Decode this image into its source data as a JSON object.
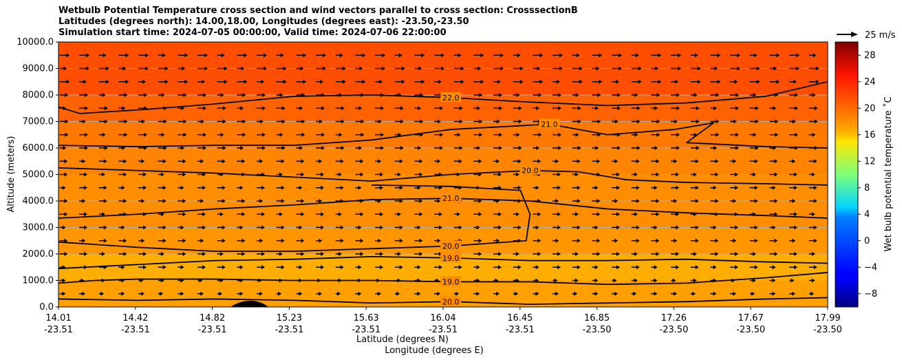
{
  "title_lines": [
    "Wetbulb Potential Temperature cross section and wind vectors parallel to cross section: CrosssectionB",
    "Latitudes (degrees north): 14.00,18.00, Longitudes (degrees east): -23.50,-23.50",
    "Simulation start time: 2024-07-05 00:00:00, Valid time: 2024-07-06 22:00:00"
  ],
  "chart_data": {
    "type": "heatmap",
    "xlabel_lat": "Latitude (degrees N)",
    "xlabel_lon": "Longitude (degrees E)",
    "ylabel": "Altitude (meters)",
    "ylim": [
      0,
      10000
    ],
    "y_ticks": [
      0,
      1000,
      2000,
      3000,
      4000,
      5000,
      6000,
      7000,
      8000,
      9000,
      10000
    ],
    "y_tick_labels": [
      "0.0",
      "1000.0",
      "2000.0",
      "3000.0",
      "4000.0",
      "5000.0",
      "6000.0",
      "7000.0",
      "8000.0",
      "9000.0",
      "10000.0"
    ],
    "x_ticks_lat": [
      "14.01",
      "14.42",
      "14.82",
      "15.23",
      "15.63",
      "16.04",
      "16.45",
      "16.85",
      "17.26",
      "17.67",
      "17.99"
    ],
    "x_ticks_lon": [
      "-23.51",
      "-23.51",
      "-23.51",
      "-23.51",
      "-23.51",
      "-23.51",
      "-23.51",
      "-23.50",
      "-23.50",
      "-23.50",
      "-23.50"
    ],
    "grid": "horizontal",
    "colorbar": {
      "label": "Wet bulb potential temperature ˚C",
      "range": [
        -10,
        30
      ],
      "ticks": [
        -8,
        -4,
        0,
        4,
        8,
        12,
        16,
        20,
        24,
        28
      ],
      "tick_labels": [
        "−8",
        "−4",
        "0",
        "4",
        "8",
        "12",
        "16",
        "20",
        "24",
        "28"
      ],
      "colormap": "jet"
    },
    "quiver_key": {
      "label": "25 m/s",
      "placement": "top-right"
    },
    "bands": [
      {
        "alt_bottom": 0,
        "alt_top": 1000,
        "temp": 19.5
      },
      {
        "alt_bottom": 1000,
        "alt_top": 2000,
        "temp": 18.5
      },
      {
        "alt_bottom": 2000,
        "alt_top": 3000,
        "temp": 20.0
      },
      {
        "alt_bottom": 3000,
        "alt_top": 5000,
        "temp": 20.5
      },
      {
        "alt_bottom": 5000,
        "alt_top": 6000,
        "temp": 21.0
      },
      {
        "alt_bottom": 6000,
        "alt_top": 7000,
        "temp": 21.5
      },
      {
        "alt_bottom": 7000,
        "alt_top": 8000,
        "temp": 22.5
      },
      {
        "alt_bottom": 8000,
        "alt_top": 10000,
        "temp": 23.5
      }
    ],
    "contours": [
      {
        "label": "22.0",
        "points": [
          [
            14.01,
            7550
          ],
          [
            14.12,
            7300
          ],
          [
            14.45,
            7450
          ],
          [
            14.8,
            7650
          ],
          [
            15.23,
            7950
          ],
          [
            15.63,
            8000
          ],
          [
            16.04,
            7900
          ],
          [
            16.4,
            7750
          ],
          [
            16.85,
            7600
          ],
          [
            17.26,
            7700
          ],
          [
            17.67,
            7950
          ],
          [
            17.99,
            8500
          ]
        ]
      },
      {
        "label": "21.0",
        "points": [
          [
            14.01,
            6100
          ],
          [
            14.42,
            6050
          ],
          [
            14.82,
            6100
          ],
          [
            15.23,
            6100
          ],
          [
            15.63,
            6300
          ],
          [
            16.04,
            6700
          ],
          [
            16.3,
            6800
          ],
          [
            16.55,
            6900
          ],
          [
            16.85,
            6500
          ],
          [
            17.2,
            6700
          ],
          [
            17.4,
            6950
          ],
          [
            17.26,
            6200
          ],
          [
            17.67,
            6050
          ],
          [
            17.99,
            6000
          ]
        ]
      },
      {
        "label": "20.0",
        "points": [
          [
            14.01,
            5250
          ],
          [
            14.42,
            5150
          ],
          [
            14.82,
            5050
          ],
          [
            15.23,
            4900
          ],
          [
            15.63,
            4750
          ],
          [
            16.04,
            5000
          ],
          [
            16.45,
            5150
          ],
          [
            16.7,
            5100
          ],
          [
            16.95,
            4800
          ],
          [
            17.26,
            4700
          ],
          [
            17.67,
            4650
          ],
          [
            17.99,
            4600
          ]
        ]
      },
      {
        "label": "20.0",
        "points": [
          [
            15.63,
            4600
          ],
          [
            16.04,
            4550
          ],
          [
            16.4,
            4400
          ],
          [
            16.45,
            3500
          ],
          [
            16.43,
            2500
          ],
          [
            16.04,
            2300
          ],
          [
            15.63,
            2200
          ],
          [
            15.23,
            2100
          ],
          [
            14.82,
            2100
          ],
          [
            14.42,
            2250
          ],
          [
            14.01,
            2450
          ]
        ]
      },
      {
        "label": "21.0",
        "points": [
          [
            14.01,
            3350
          ],
          [
            14.42,
            3500
          ],
          [
            14.82,
            3700
          ],
          [
            15.23,
            3850
          ],
          [
            15.63,
            4050
          ],
          [
            16.04,
            4100
          ],
          [
            16.45,
            4000
          ],
          [
            16.85,
            3700
          ],
          [
            17.26,
            3550
          ],
          [
            17.67,
            3450
          ],
          [
            17.99,
            3350
          ]
        ]
      },
      {
        "label": "19.0",
        "points": [
          [
            14.01,
            1450
          ],
          [
            14.42,
            1600
          ],
          [
            14.82,
            1750
          ],
          [
            15.23,
            1800
          ],
          [
            15.63,
            1900
          ],
          [
            16.04,
            1850
          ],
          [
            16.45,
            1750
          ],
          [
            16.85,
            1750
          ],
          [
            17.26,
            1800
          ],
          [
            17.67,
            1700
          ],
          [
            17.99,
            1650
          ]
        ]
      },
      {
        "label": "19.0",
        "points": [
          [
            14.01,
            900
          ],
          [
            14.2,
            1000
          ],
          [
            14.42,
            1050
          ],
          [
            14.82,
            1050
          ],
          [
            15.23,
            1000
          ],
          [
            15.63,
            1000
          ],
          [
            16.04,
            950
          ],
          [
            16.45,
            950
          ],
          [
            16.85,
            850
          ],
          [
            17.26,
            900
          ],
          [
            17.67,
            1100
          ],
          [
            17.99,
            1300
          ]
        ]
      },
      {
        "label": "20.0",
        "points": [
          [
            14.01,
            300
          ],
          [
            14.42,
            250
          ],
          [
            14.82,
            300
          ],
          [
            15.23,
            250
          ],
          [
            15.63,
            150
          ],
          [
            16.04,
            200
          ],
          [
            16.45,
            100
          ],
          [
            16.85,
            150
          ],
          [
            17.26,
            200
          ],
          [
            17.67,
            300
          ],
          [
            17.99,
            350
          ]
        ]
      }
    ]
  }
}
